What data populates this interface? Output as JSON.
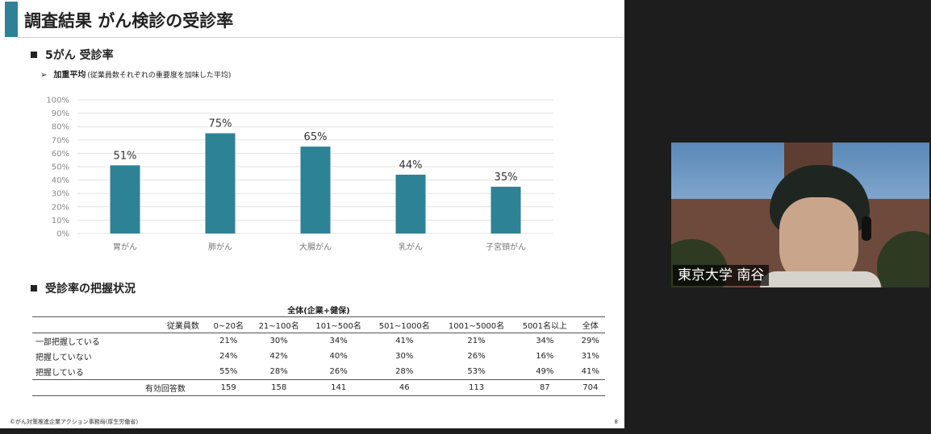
{
  "slide": {
    "title": "調査結果 がん検診の受診率",
    "section1_heading": "5がん 受診率",
    "subheading": "加重平均",
    "subheading_note": "(従業員数それぞれの重要度を加味した平均)",
    "section2_heading": "受診率の把握状況",
    "footer_credit": "©がん対策推進企業アクション事務局(厚生労働省)",
    "page_number": "8",
    "accent_color": "#2e8296"
  },
  "chart_data": {
    "type": "bar",
    "categories": [
      "胃がん",
      "肺がん",
      "大腸がん",
      "乳がん",
      "子宮頸がん"
    ],
    "values": [
      51,
      75,
      65,
      44,
      35
    ],
    "value_labels": [
      "51%",
      "75%",
      "65%",
      "44%",
      "35%"
    ],
    "ylim": [
      0,
      100
    ],
    "yticks": [
      "0%",
      "10%",
      "20%",
      "30%",
      "40%",
      "50%",
      "60%",
      "70%",
      "80%",
      "90%",
      "100%"
    ],
    "grid": true,
    "bar_color": "#2e8296"
  },
  "table": {
    "caption": "全体(企業+健保)",
    "headers": [
      "従業員数",
      "0~20名",
      "21~100名",
      "101~500名",
      "501~1000名",
      "1001~5000名",
      "5001名以上",
      "全体"
    ],
    "rows": [
      [
        "一部把握している",
        "21%",
        "30%",
        "34%",
        "41%",
        "21%",
        "34%",
        "29%"
      ],
      [
        "把握していない",
        "24%",
        "42%",
        "40%",
        "30%",
        "26%",
        "16%",
        "31%"
      ],
      [
        "把握している",
        "55%",
        "28%",
        "26%",
        "28%",
        "53%",
        "49%",
        "41%"
      ]
    ],
    "footer": [
      "有効回答数",
      "159",
      "158",
      "141",
      "46",
      "113",
      "87",
      "704"
    ]
  },
  "video": {
    "participant_name": "東京大学 南谷"
  }
}
